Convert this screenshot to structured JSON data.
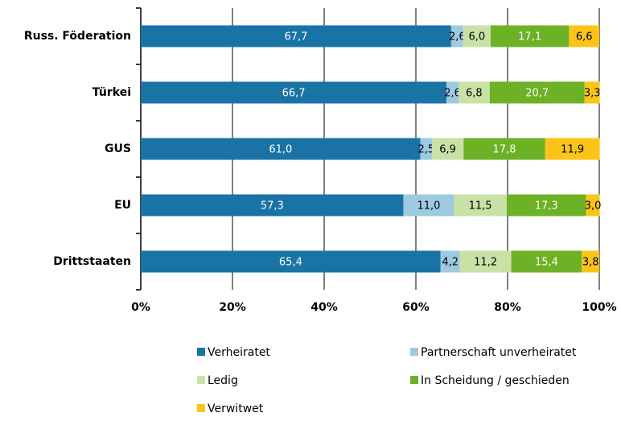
{
  "chart_data": {
    "type": "bar",
    "orientation": "horizontal",
    "stacked": true,
    "categories": [
      "Russ. Föderation",
      "Türkei",
      "GUS",
      "EU",
      "Drittstaaten"
    ],
    "series": [
      {
        "name": "Verheiratet",
        "color": "#1a73a5",
        "values": [
          67.7,
          66.7,
          61.0,
          57.3,
          65.4
        ],
        "value_labels": [
          "67,7",
          "66,7",
          "61,0",
          "57,3",
          "65,4"
        ]
      },
      {
        "name": "Partnerschaft unverheiratet",
        "color": "#9ecae0",
        "values": [
          2.6,
          2.6,
          2.5,
          11.0,
          4.2
        ],
        "value_labels": [
          "2,6",
          "2,6",
          "2,5",
          "11,0",
          "4,2"
        ]
      },
      {
        "name": "Ledig",
        "color": "#c8e2a6",
        "values": [
          6.0,
          6.8,
          6.9,
          11.5,
          11.2
        ],
        "value_labels": [
          "6,0",
          "6,8",
          "6,9",
          "11,5",
          "11,2"
        ]
      },
      {
        "name": "In Scheidung / geschieden",
        "color": "#6db126",
        "values": [
          17.1,
          20.7,
          17.8,
          17.3,
          15.4
        ],
        "value_labels": [
          "17,1",
          "20,7",
          "17,8",
          "17,3",
          "15,4"
        ]
      },
      {
        "name": "Verwitwet",
        "color": "#fcc419",
        "values": [
          6.6,
          3.3,
          11.9,
          3.0,
          3.8
        ],
        "value_labels": [
          "6,6",
          "3,3",
          "11,9",
          "3,0",
          "3,8"
        ]
      }
    ],
    "xlim": [
      0,
      100
    ],
    "xticks": [
      {
        "value": 0,
        "label": "0%"
      },
      {
        "value": 20,
        "label": "20%"
      },
      {
        "value": 40,
        "label": "40%"
      },
      {
        "value": 60,
        "label": "60%"
      },
      {
        "value": 80,
        "label": "80%"
      },
      {
        "value": 100,
        "label": "100%"
      }
    ],
    "grid": true
  }
}
